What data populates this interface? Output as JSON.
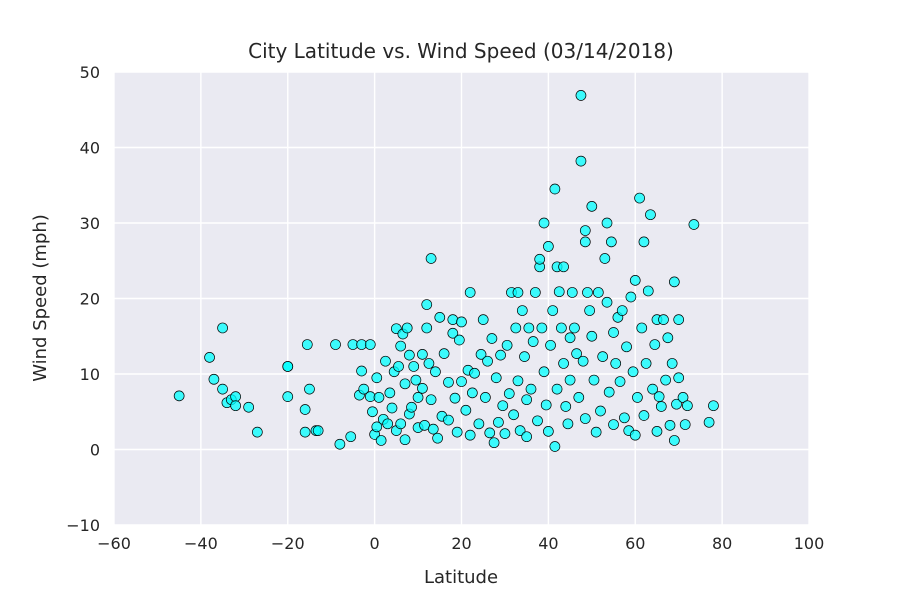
{
  "chart_data": {
    "type": "scatter",
    "title": "City Latitude vs. Wind Speed (03/14/2018)",
    "xlabel": "Latitude",
    "ylabel": "Wind Speed (mph)",
    "xlim": [
      -60,
      100
    ],
    "ylim": [
      -10,
      50
    ],
    "xticks": [
      "−60",
      "−40",
      "−20",
      "0",
      "20",
      "40",
      "60",
      "80",
      "100"
    ],
    "yticks": [
      "−10",
      "0",
      "10",
      "20",
      "30",
      "40",
      "50"
    ],
    "grid": true,
    "legend": "none",
    "colors": {
      "background": "#eaeaf2",
      "grid": "#ffffff",
      "marker_fill": "#00ffff",
      "marker_edge": "#000000"
    },
    "points": [
      [
        -45,
        7.1
      ],
      [
        -38,
        12.2
      ],
      [
        -37,
        9.3
      ],
      [
        -35,
        16.1
      ],
      [
        -35,
        8
      ],
      [
        -34,
        6.2
      ],
      [
        -33,
        6.6
      ],
      [
        -32,
        7
      ],
      [
        -32,
        5.8
      ],
      [
        -29,
        5.6
      ],
      [
        -27,
        2.3
      ],
      [
        -20,
        11
      ],
      [
        -20,
        11
      ],
      [
        -20,
        7
      ],
      [
        -16,
        5.3
      ],
      [
        -16,
        2.3
      ],
      [
        -15.5,
        13.9
      ],
      [
        -15,
        8
      ],
      [
        -13.5,
        2.5
      ],
      [
        -13,
        2.5
      ],
      [
        -9,
        13.9
      ],
      [
        -8,
        0.7
      ],
      [
        -5.5,
        1.7
      ],
      [
        -5,
        13.9
      ],
      [
        -3,
        13.9
      ],
      [
        -3.5,
        7.2
      ],
      [
        -3,
        10.4
      ],
      [
        -2.5,
        8
      ],
      [
        -1,
        13.9
      ],
      [
        -1,
        7
      ],
      [
        -0.5,
        5
      ],
      [
        0,
        2
      ],
      [
        0.5,
        3
      ],
      [
        0.5,
        9.5
      ],
      [
        1,
        6.9
      ],
      [
        1.5,
        1.2
      ],
      [
        2,
        4
      ],
      [
        2.5,
        11.7
      ],
      [
        3,
        3.4
      ],
      [
        3.5,
        7.5
      ],
      [
        4,
        5.5
      ],
      [
        4.5,
        10.3
      ],
      [
        5,
        16
      ],
      [
        5,
        2.5
      ],
      [
        5.5,
        11
      ],
      [
        6,
        13.7
      ],
      [
        6,
        3.4
      ],
      [
        6.5,
        15.3
      ],
      [
        7,
        8.7
      ],
      [
        7,
        1.3
      ],
      [
        7.5,
        16.1
      ],
      [
        8,
        12.5
      ],
      [
        8,
        4.7
      ],
      [
        8.5,
        5.6
      ],
      [
        9,
        11
      ],
      [
        9.5,
        9.2
      ],
      [
        10,
        2.9
      ],
      [
        10,
        6.9
      ],
      [
        11,
        12.6
      ],
      [
        11,
        8.1
      ],
      [
        11.5,
        3.2
      ],
      [
        12,
        16.1
      ],
      [
        12,
        19.2
      ],
      [
        12.5,
        11.4
      ],
      [
        13,
        6.6
      ],
      [
        13,
        25.3
      ],
      [
        13.5,
        2.7
      ],
      [
        14,
        10.3
      ],
      [
        14.5,
        1.5
      ],
      [
        15,
        17.5
      ],
      [
        15.5,
        4.4
      ],
      [
        16,
        12.7
      ],
      [
        17,
        8.9
      ],
      [
        17,
        3.9
      ],
      [
        18,
        15.4
      ],
      [
        18,
        17.2
      ],
      [
        18.5,
        6.8
      ],
      [
        19,
        2.3
      ],
      [
        19.5,
        14.5
      ],
      [
        20,
        9
      ],
      [
        20,
        16.9
      ],
      [
        21,
        5.2
      ],
      [
        21.5,
        10.5
      ],
      [
        22,
        20.8
      ],
      [
        22,
        1.9
      ],
      [
        22.5,
        7.5
      ],
      [
        23,
        10.1
      ],
      [
        24,
        3.4
      ],
      [
        24.5,
        12.6
      ],
      [
        25,
        17.2
      ],
      [
        25.5,
        6.9
      ],
      [
        26,
        11.7
      ],
      [
        26.5,
        2.2
      ],
      [
        27,
        14.7
      ],
      [
        27.5,
        0.9
      ],
      [
        28,
        9.5
      ],
      [
        28.5,
        3.6
      ],
      [
        29,
        12.5
      ],
      [
        29.5,
        5.8
      ],
      [
        30,
        2.1
      ],
      [
        30.5,
        13.8
      ],
      [
        31,
        7.4
      ],
      [
        31.5,
        20.8
      ],
      [
        32,
        4.6
      ],
      [
        32.5,
        16.1
      ],
      [
        33,
        20.8
      ],
      [
        33,
        9.1
      ],
      [
        33.5,
        2.5
      ],
      [
        34,
        18.4
      ],
      [
        34.5,
        12.3
      ],
      [
        35,
        6.6
      ],
      [
        35,
        1.7
      ],
      [
        35.5,
        16.1
      ],
      [
        36,
        8
      ],
      [
        36.5,
        14.3
      ],
      [
        37,
        20.8
      ],
      [
        37.5,
        3.8
      ],
      [
        38,
        24.2
      ],
      [
        38,
        25.2
      ],
      [
        38.5,
        16.1
      ],
      [
        39,
        10.3
      ],
      [
        39,
        30
      ],
      [
        39.5,
        5.9
      ],
      [
        40,
        26.9
      ],
      [
        40,
        2.4
      ],
      [
        40.5,
        13.8
      ],
      [
        41,
        18.4
      ],
      [
        41.5,
        34.5
      ],
      [
        41.5,
        0.4
      ],
      [
        42,
        24.2
      ],
      [
        42,
        8
      ],
      [
        42.5,
        20.9
      ],
      [
        43,
        16.1
      ],
      [
        43.5,
        11.4
      ],
      [
        43.5,
        24.2
      ],
      [
        44,
        5.7
      ],
      [
        44.5,
        3.4
      ],
      [
        45,
        14.8
      ],
      [
        45,
        9.2
      ],
      [
        45.5,
        20.8
      ],
      [
        46,
        16.1
      ],
      [
        46.5,
        12.7
      ],
      [
        47,
        6.9
      ],
      [
        47.5,
        38.2
      ],
      [
        47.5,
        46.9
      ],
      [
        48,
        11.7
      ],
      [
        48.5,
        4.1
      ],
      [
        48.5,
        29
      ],
      [
        48.5,
        27.5
      ],
      [
        49,
        20.8
      ],
      [
        49.5,
        18.4
      ],
      [
        50,
        15
      ],
      [
        50,
        32.2
      ],
      [
        50.5,
        9.2
      ],
      [
        51,
        2.3
      ],
      [
        51.5,
        20.8
      ],
      [
        52,
        5.1
      ],
      [
        52.5,
        12.3
      ],
      [
        53,
        25.3
      ],
      [
        53.5,
        30
      ],
      [
        53.5,
        19.5
      ],
      [
        54,
        7.6
      ],
      [
        54.5,
        27.5
      ],
      [
        55,
        3.3
      ],
      [
        55,
        15.5
      ],
      [
        55.5,
        11.4
      ],
      [
        56,
        17.5
      ],
      [
        56.5,
        9
      ],
      [
        57,
        18.4
      ],
      [
        57.5,
        4.2
      ],
      [
        58,
        13.6
      ],
      [
        58.5,
        2.5
      ],
      [
        59,
        20.2
      ],
      [
        59.5,
        10.3
      ],
      [
        60,
        22.4
      ],
      [
        60,
        1.9
      ],
      [
        60.5,
        6.9
      ],
      [
        61,
        33.3
      ],
      [
        61.5,
        16.1
      ],
      [
        62,
        27.5
      ],
      [
        62,
        4.5
      ],
      [
        62.5,
        11.4
      ],
      [
        63,
        21
      ],
      [
        63.5,
        31.1
      ],
      [
        64,
        8
      ],
      [
        64.5,
        13.9
      ],
      [
        65,
        2.4
      ],
      [
        65,
        17.2
      ],
      [
        65.5,
        7
      ],
      [
        66,
        5.7
      ],
      [
        66.5,
        17.2
      ],
      [
        67,
        9.2
      ],
      [
        67.5,
        14.8
      ],
      [
        68,
        3.2
      ],
      [
        68.5,
        11.4
      ],
      [
        69,
        22.2
      ],
      [
        69,
        1.2
      ],
      [
        69.5,
        6
      ],
      [
        70,
        17.2
      ],
      [
        70,
        9.5
      ],
      [
        71,
        6.9
      ],
      [
        71.5,
        3.3
      ],
      [
        72,
        5.8
      ],
      [
        73.5,
        29.8
      ],
      [
        77,
        3.6
      ],
      [
        78,
        5.8
      ]
    ]
  }
}
